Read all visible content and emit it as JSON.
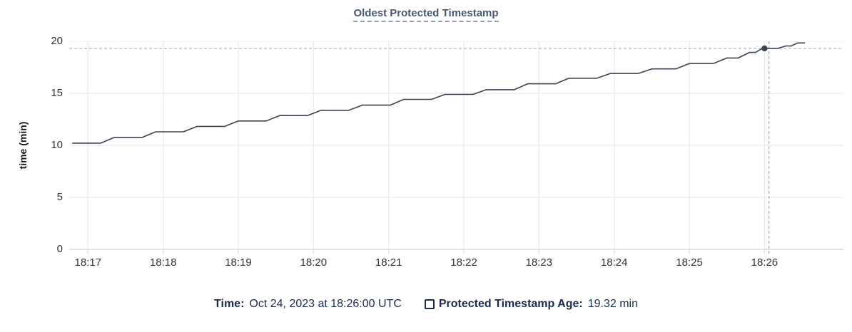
{
  "header": {
    "title": "Oldest Protected Timestamp"
  },
  "y_axis": {
    "label": "time (min)"
  },
  "legend": {
    "time_label": "Time:",
    "time_value": "Oct 24, 2023 at 18:26:00 UTC",
    "series_label": "Protected Timestamp Age:",
    "series_value": "19.32 min"
  },
  "colors": {
    "title": "#475872",
    "series_line": "#394455",
    "hover_point": "#394455",
    "gridline": "#e8eaed",
    "axis_line": "#dadde2",
    "crosshair": "#9fb0c0",
    "tick_text": "#2f3439",
    "legend_text": "#1b2b4d"
  },
  "chart_data": {
    "type": "line",
    "title": "Oldest Protected Timestamp",
    "xlabel": "",
    "ylabel": "time (min)",
    "x_unit": "minutes after 18:00 UTC on Oct 24, 2023",
    "xlim": [
      16.75,
      27.05
    ],
    "ylim": [
      0,
      20
    ],
    "grid": true,
    "legend_position": "bottom",
    "y_ticks": [
      0,
      5,
      10,
      15,
      20
    ],
    "x_ticks": [
      {
        "t": 17,
        "label": "18:17"
      },
      {
        "t": 18,
        "label": "18:18"
      },
      {
        "t": 19,
        "label": "18:19"
      },
      {
        "t": 20,
        "label": "18:20"
      },
      {
        "t": 21,
        "label": "18:21"
      },
      {
        "t": 22,
        "label": "18:22"
      },
      {
        "t": 23,
        "label": "18:23"
      },
      {
        "t": 24,
        "label": "18:24"
      },
      {
        "t": 25,
        "label": "18:25"
      },
      {
        "t": 26,
        "label": "18:26"
      }
    ],
    "series": [
      {
        "name": "Protected Timestamp Age",
        "unit": "min",
        "points": [
          [
            16.79,
            10.21
          ],
          [
            17.17,
            10.21
          ],
          [
            17.35,
            10.76
          ],
          [
            17.72,
            10.76
          ],
          [
            17.9,
            11.3
          ],
          [
            18.27,
            11.3
          ],
          [
            18.45,
            11.82
          ],
          [
            18.82,
            11.82
          ],
          [
            19.0,
            12.34
          ],
          [
            19.37,
            12.34
          ],
          [
            19.55,
            12.86
          ],
          [
            19.92,
            12.86
          ],
          [
            20.1,
            13.37
          ],
          [
            20.47,
            13.37
          ],
          [
            20.65,
            13.86
          ],
          [
            21.02,
            13.86
          ],
          [
            21.2,
            14.42
          ],
          [
            21.57,
            14.42
          ],
          [
            21.75,
            14.9
          ],
          [
            22.12,
            14.9
          ],
          [
            22.3,
            15.35
          ],
          [
            22.67,
            15.35
          ],
          [
            22.85,
            15.92
          ],
          [
            23.22,
            15.92
          ],
          [
            23.4,
            16.45
          ],
          [
            23.77,
            16.45
          ],
          [
            23.95,
            16.91
          ],
          [
            24.32,
            16.91
          ],
          [
            24.5,
            17.35
          ],
          [
            24.82,
            17.35
          ],
          [
            25.0,
            17.87
          ],
          [
            25.32,
            17.87
          ],
          [
            25.5,
            18.4
          ],
          [
            25.65,
            18.4
          ],
          [
            25.8,
            18.93
          ],
          [
            25.88,
            18.93
          ],
          [
            25.97,
            19.32
          ],
          [
            26.18,
            19.32
          ],
          [
            26.28,
            19.55
          ],
          [
            26.35,
            19.55
          ],
          [
            26.44,
            19.84
          ],
          [
            26.54,
            19.84
          ]
        ]
      }
    ],
    "hover": {
      "t": 26.0,
      "value": 19.32,
      "crosshair_t": 26.06,
      "time_text": "Oct 24, 2023 at 18:26:00 UTC",
      "value_text": "19.32 min"
    }
  }
}
